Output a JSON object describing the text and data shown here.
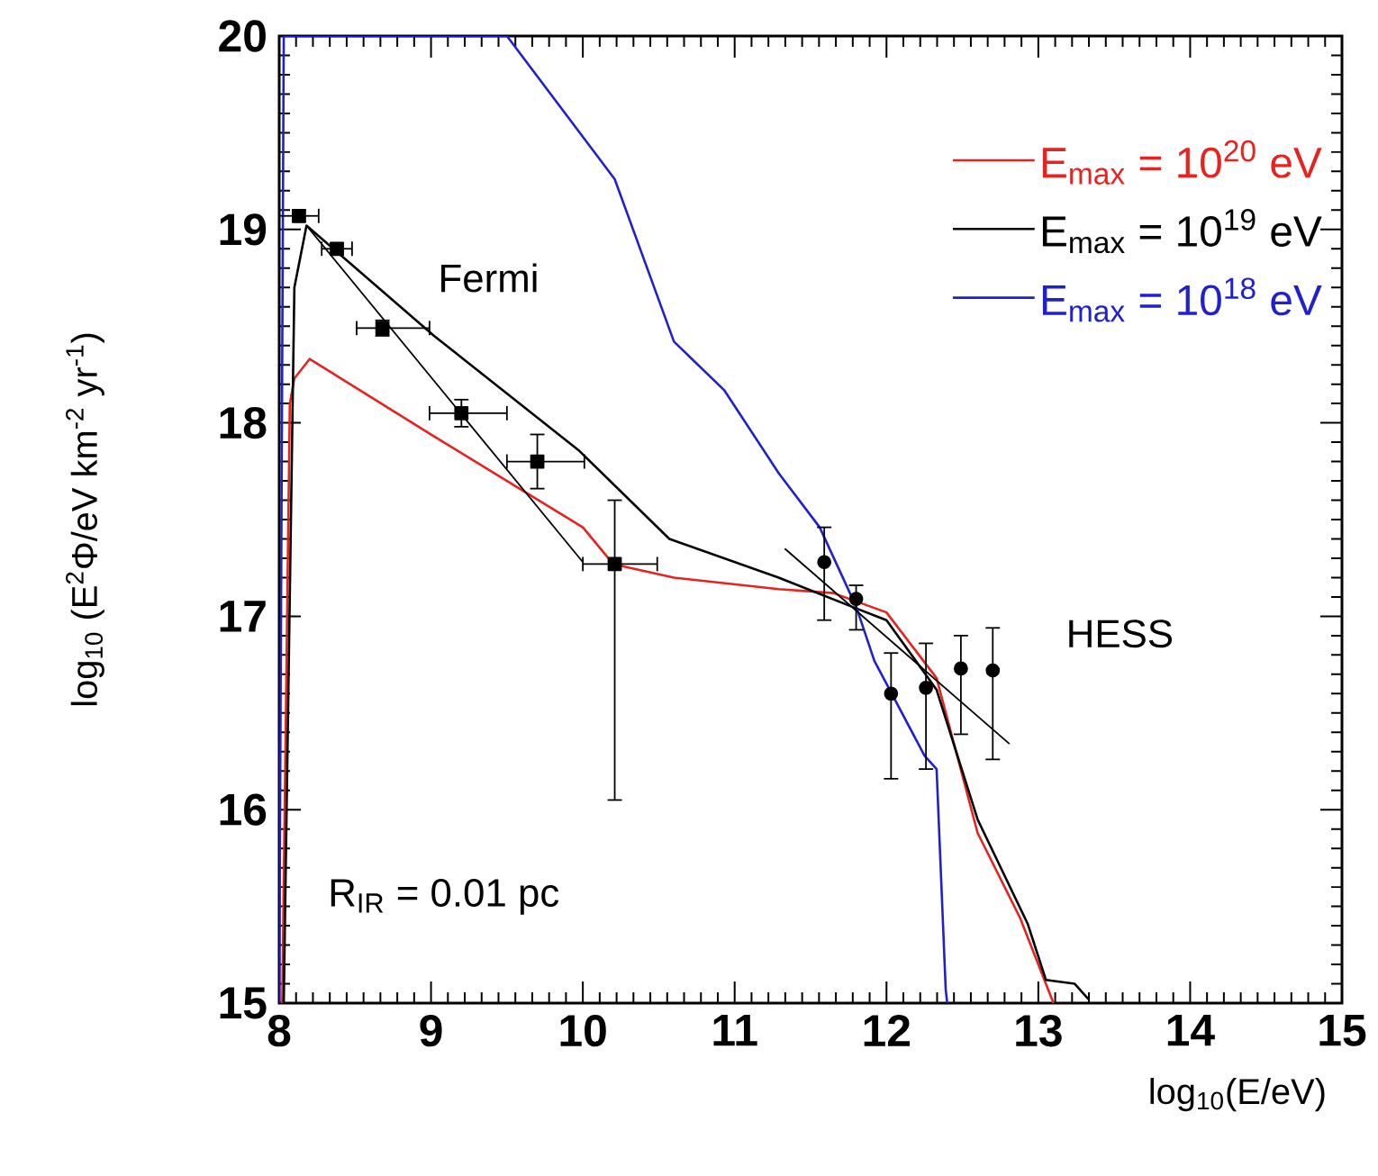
{
  "chart_data": {
    "type": "line",
    "xlabel": "log$_{10}$(E/eV)",
    "ylabel": "log$_{10}$ (E$^{2}$Φ/eV km$^{-2}$ yr$^{-1}$)",
    "xlim": [
      8,
      15
    ],
    "ylim": [
      15,
      20
    ],
    "xticks": [
      8,
      9,
      10,
      11,
      12,
      13,
      14,
      15
    ],
    "yticks": [
      15,
      16,
      17,
      18,
      19,
      20
    ],
    "grid": false,
    "legend": "top right",
    "series": [
      {
        "name": "E$_{max}$ = 10$^{20}$ eV",
        "color": "#e8221f",
        "x": [
          8.02,
          8.07,
          8.1,
          8.2,
          9.02,
          10.0,
          10.2,
          10.6,
          11.29,
          11.65,
          12.0,
          12.33,
          12.6,
          12.88,
          13.08,
          13.1
        ],
        "values": [
          15,
          18.1,
          18.23,
          18.33,
          17.93,
          17.46,
          17.27,
          17.2,
          17.14,
          17.12,
          17.02,
          16.68,
          15.88,
          15.44,
          15.04,
          15
        ]
      },
      {
        "name": "E$_{max}$ = 10$^{19}$ eV",
        "color": "#000000",
        "x": [
          8.03,
          8.1,
          8.18,
          9.02,
          9.97,
          10.57,
          11.29,
          11.77,
          12.0,
          12.33,
          12.6,
          12.93,
          13.05,
          13.24,
          13.33
        ],
        "values": [
          15,
          18.7,
          19.02,
          18.45,
          17.86,
          17.4,
          17.2,
          17.05,
          16.98,
          16.62,
          15.95,
          15.41,
          15.12,
          15.1,
          15.02
        ]
      },
      {
        "name": "E$_{max}$ = 10$^{18}$ eV",
        "color": "#2020d0",
        "x": [
          8.0,
          8.03,
          9.5,
          10.21,
          10.6,
          10.93,
          11.29,
          11.56,
          11.8,
          11.92,
          12.25,
          12.33,
          12.39,
          12.4
        ],
        "values": [
          15,
          20,
          20,
          19.26,
          18.42,
          18.17,
          17.74,
          17.46,
          17.05,
          16.77,
          16.28,
          16.21,
          15.07,
          15
        ]
      },
      {
        "type": "line",
        "color": "#000000",
        "x": [
          8.18,
          10.0
        ],
        "values": [
          19.02,
          17.28
        ]
      },
      {
        "type": "line",
        "color": "#000000",
        "x": [
          11.33,
          12.81
        ],
        "values": [
          17.35,
          16.34
        ]
      },
      {
        "type": "scatter",
        "marker": "square",
        "color": "#000000",
        "x": [
          8.13,
          8.38,
          8.68,
          9.2,
          9.7,
          10.21
        ],
        "values": [
          19.07,
          18.9,
          18.49,
          18.05,
          17.8,
          17.27
        ],
        "errors": [
          0.03,
          0.03,
          0.04,
          0.07,
          0.14,
          [
            16.05,
            17.6
          ]
        ],
        "xerrors": [
          0.13,
          0.1,
          [
            8.51,
            8.99
          ],
          [
            8.99,
            9.5
          ],
          [
            9.5,
            10.01
          ],
          [
            10.0,
            10.49
          ]
        ]
      },
      {
        "type": "scatter",
        "marker": "circle",
        "color": "#000000",
        "x": [
          11.59,
          11.8,
          12.03,
          12.26,
          12.49,
          12.7
        ],
        "values": [
          17.28,
          17.09,
          16.6,
          16.63,
          16.73,
          16.72
        ],
        "errors": [
          [
            16.98,
            17.46
          ],
          [
            16.93,
            17.16
          ],
          [
            16.16,
            16.81
          ],
          [
            16.21,
            16.86
          ],
          [
            16.39,
            16.9
          ],
          [
            16.26,
            16.94
          ]
        ]
      }
    ],
    "annotations": [
      "Fermi",
      "HESS",
      "R$_{IR}$ = 0.01 pc"
    ]
  }
}
